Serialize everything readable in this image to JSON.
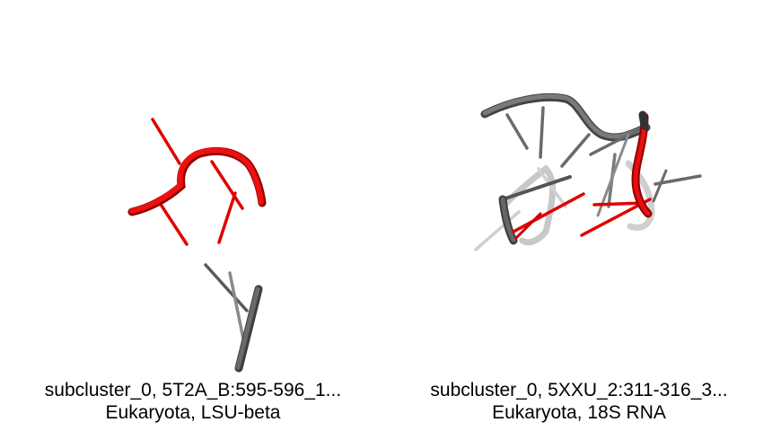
{
  "panels": [
    {
      "caption_line1": "subcluster_0, 5T2A_B:595-596_1...",
      "caption_line2": "Eukaryota, LSU-beta"
    },
    {
      "caption_line1": "subcluster_0, 5XXU_2:311-316_3...",
      "caption_line2": "Eukaryota, 18S RNA"
    }
  ],
  "colors": {
    "highlight": "#e00000",
    "backbone": "#5a5a5a",
    "faded": "#c8c8c8"
  }
}
